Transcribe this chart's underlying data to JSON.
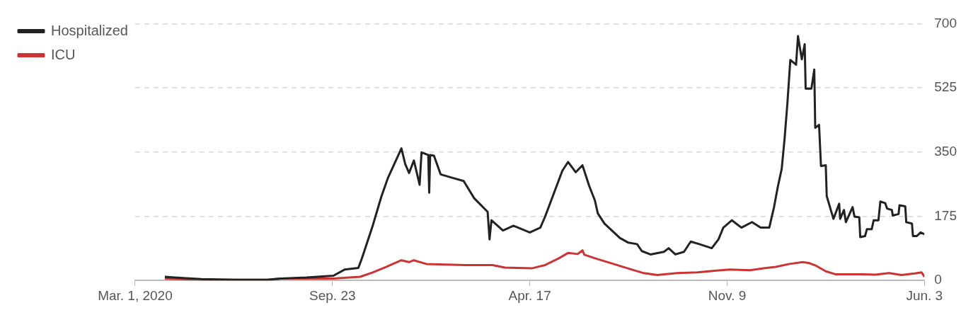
{
  "chart_data": {
    "type": "line",
    "legend": "top left",
    "grid": "y",
    "xlim": [
      "2020-03-01",
      "2022-06-03"
    ],
    "xticks": [
      {
        "value": "2020-03-01",
        "label": "Mar. 1, 2020"
      },
      {
        "value": "2020-09-23",
        "label": "Sep. 23"
      },
      {
        "value": "2021-04-17",
        "label": "Apr. 17"
      },
      {
        "value": "2021-11-09",
        "label": "Nov. 9"
      },
      {
        "value": "2022-06-03",
        "label": "Jun. 3"
      }
    ],
    "ylim": [
      0,
      700
    ],
    "yticks": [
      0,
      175,
      350,
      525,
      700
    ],
    "series": [
      {
        "name": "Hospitalized",
        "color": "#222222",
        "x": [
          "2020-04-01",
          "2020-04-11",
          "2020-05-09",
          "2020-06-13",
          "2020-07-17",
          "2020-07-31",
          "2020-08-27",
          "2020-09-24",
          "2020-10-06",
          "2020-10-20",
          "2020-10-24",
          "2020-11-04",
          "2020-11-13",
          "2020-11-20",
          "2020-12-04",
          "2020-12-08",
          "2020-12-12",
          "2020-12-17",
          "2020-12-23",
          "2020-12-25",
          "2021-01-01",
          "2021-01-02",
          "2021-01-03",
          "2021-01-07",
          "2021-01-14",
          "2021-01-26",
          "2021-02-07",
          "2021-02-18",
          "2021-03-04",
          "2021-03-06",
          "2021-03-08",
          "2021-03-20",
          "2021-03-31",
          "2021-04-17",
          "2021-04-28",
          "2021-05-03",
          "2021-05-21",
          "2021-05-27",
          "2021-06-04",
          "2021-06-11",
          "2021-06-18",
          "2021-06-24",
          "2021-06-27",
          "2021-07-04",
          "2021-07-20",
          "2021-07-29",
          "2021-08-07",
          "2021-08-12",
          "2021-08-21",
          "2021-09-04",
          "2021-09-09",
          "2021-09-16",
          "2021-09-25",
          "2021-10-02",
          "2021-10-11",
          "2021-10-24",
          "2021-10-31",
          "2021-11-05",
          "2021-11-14",
          "2021-11-24",
          "2021-12-05",
          "2021-12-14",
          "2021-12-23",
          "2021-12-28",
          "2022-01-01",
          "2022-01-05",
          "2022-01-08",
          "2022-01-11",
          "2022-01-14",
          "2022-01-20",
          "2022-01-22",
          "2022-01-26",
          "2022-01-29",
          "2022-01-30",
          "2022-02-05",
          "2022-02-08",
          "2022-02-09",
          "2022-02-13",
          "2022-02-15",
          "2022-02-20",
          "2022-02-21",
          "2022-02-28",
          "2022-03-06",
          "2022-03-07",
          "2022-03-11",
          "2022-03-13",
          "2022-03-20",
          "2022-03-22",
          "2022-03-27",
          "2022-03-28",
          "2022-04-02",
          "2022-04-04",
          "2022-04-09",
          "2022-04-11",
          "2022-04-16",
          "2022-04-18",
          "2022-04-23",
          "2022-04-25",
          "2022-04-30",
          "2022-05-01",
          "2022-05-07",
          "2022-05-08",
          "2022-05-14",
          "2022-05-15",
          "2022-05-21",
          "2022-05-22",
          "2022-05-26",
          "2022-05-30",
          "2022-06-03"
        ],
        "values": [
          10,
          8,
          4,
          2,
          2,
          5,
          8,
          13,
          30,
          34,
          62,
          149,
          228,
          280,
          360,
          317,
          293,
          327,
          261,
          349,
          342,
          239,
          342,
          340,
          289,
          280,
          271,
          224,
          187,
          112,
          164,
          136,
          149,
          131,
          144,
          174,
          299,
          323,
          295,
          314,
          258,
          218,
          183,
          155,
          116,
          103,
          99,
          80,
          71,
          78,
          88,
          71,
          78,
          106,
          99,
          88,
          112,
          144,
          164,
          144,
          159,
          144,
          144,
          200,
          256,
          304,
          386,
          485,
          601,
          588,
          666,
          603,
          644,
          523,
          523,
          575,
          416,
          424,
          312,
          314,
          230,
          168,
          209,
          168,
          192,
          159,
          200,
          174,
          172,
          118,
          121,
          140,
          140,
          164,
          164,
          215,
          211,
          196,
          192,
          177,
          181,
          205,
          202,
          159,
          155,
          121,
          121,
          131,
          126
        ]
      },
      {
        "name": "ICU",
        "color": "#cc3333",
        "x": [
          "2020-04-01",
          "2020-05-09",
          "2020-07-17",
          "2020-07-31",
          "2020-08-27",
          "2020-09-24",
          "2020-10-22",
          "2020-11-04",
          "2020-11-18",
          "2020-11-25",
          "2020-12-04",
          "2020-12-12",
          "2020-12-17",
          "2020-12-30",
          "2021-02-09",
          "2021-03-09",
          "2021-03-22",
          "2021-04-19",
          "2021-05-03",
          "2021-05-17",
          "2021-05-27",
          "2021-06-06",
          "2021-06-11",
          "2021-06-13",
          "2021-06-27",
          "2021-07-11",
          "2021-08-01",
          "2021-08-14",
          "2021-08-28",
          "2021-09-18",
          "2021-10-09",
          "2021-10-29",
          "2021-11-12",
          "2021-12-03",
          "2021-12-17",
          "2021-12-30",
          "2022-01-13",
          "2022-01-27",
          "2022-02-03",
          "2022-02-10",
          "2022-02-20",
          "2022-03-02",
          "2022-03-30",
          "2022-04-13",
          "2022-04-27",
          "2022-05-10",
          "2022-05-24",
          "2022-05-31",
          "2022-06-03"
        ],
        "values": [
          5,
          2,
          2,
          5,
          5,
          5,
          10,
          22,
          37,
          45,
          55,
          50,
          55,
          45,
          42,
          42,
          35,
          33,
          42,
          60,
          75,
          72,
          82,
          70,
          58,
          47,
          30,
          20,
          15,
          20,
          22,
          27,
          30,
          28,
          33,
          37,
          45,
          50,
          47,
          40,
          25,
          17,
          17,
          16,
          20,
          15,
          19,
          22,
          10
        ]
      }
    ]
  }
}
